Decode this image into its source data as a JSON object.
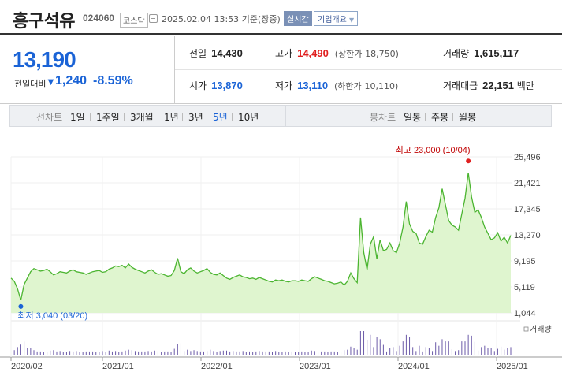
{
  "header": {
    "stock_name": "흥구석유",
    "stock_code": "024060",
    "market": "코스닥",
    "datetime": "2025.02.04 13:53",
    "basis": "기준(장중)",
    "realtime_label": "실시간",
    "company_button": "기업개요"
  },
  "quote": {
    "price": "13,190",
    "compare_label": "전일대비",
    "change": "1,240",
    "change_pct": "-8.59%",
    "prev_close_label": "전일",
    "prev_close": "14,430",
    "high_label": "고가",
    "high": "14,490",
    "upper_limit_label": "(상한가",
    "upper_limit": "18,750)",
    "volume_label": "거래량",
    "volume": "1,615,117",
    "open_label": "시가",
    "open": "13,870",
    "low_label": "저가",
    "low": "13,110",
    "lower_limit_label": "(하한가",
    "lower_limit": "10,110)",
    "amount_label": "거래대금",
    "amount": "22,151",
    "amount_unit": "백만"
  },
  "period_tabs": {
    "line_chart_label": "선차트",
    "items": [
      "1일",
      "1주일",
      "3개월",
      "1년",
      "3년",
      "5년",
      "10년"
    ],
    "selected": "5년",
    "candle_chart_label": "봉차트",
    "candle_items": [
      "일봉",
      "주봉",
      "월봉"
    ]
  },
  "colors": {
    "up": "#e02020",
    "down": "#1a63d6",
    "line": "#4cb531",
    "fill": "#dff5cf"
  },
  "chart_data": {
    "type": "area",
    "y_ticks": [
      "25,496",
      "21,421",
      "17,345",
      "13,270",
      "9,195",
      "5,119",
      "1,044"
    ],
    "ylim": [
      1044,
      25496
    ],
    "x_ticks": [
      "2020/02",
      "2021/01",
      "2022/01",
      "2023/01",
      "2024/01",
      "2025/01"
    ],
    "high_annotation": "최고 23,000 (10/04)",
    "low_annotation": "최저 3,040 (03/20)",
    "volume_label": "거래량",
    "series": [
      {
        "values": [
          6500,
          6000,
          4800,
          3040,
          5500,
          6500,
          7500,
          8000,
          7800,
          7600,
          7700,
          7900,
          7500,
          7000,
          7200,
          7500,
          7400,
          7300,
          7600,
          7800,
          7500,
          7400,
          7300,
          7100,
          7300,
          7500,
          7600,
          7700,
          7400,
          7500,
          7900,
          8100,
          8400,
          8300,
          8500,
          8100,
          8700,
          8200,
          7900,
          7700,
          7500,
          7300,
          7600,
          7800,
          7400,
          7100,
          7200,
          7000,
          6800,
          6900,
          7700,
          9600,
          7500,
          7200,
          7800,
          8100,
          7600,
          7300,
          7500,
          7700,
          8000,
          7400,
          7100,
          7000,
          7300,
          6900,
          6500,
          6300,
          6600,
          6800,
          7000,
          6700,
          6600,
          6400,
          6500,
          6300,
          6600,
          6400,
          6200,
          6000,
          5900,
          6200,
          6100,
          6200,
          6000,
          5900,
          6100,
          6100,
          6000,
          6200,
          6100,
          6000,
          6400,
          6700,
          6500,
          6300,
          6100,
          6000,
          5800,
          5600,
          5700,
          5900,
          5400,
          6000,
          7300,
          6400,
          5800,
          16000,
          10500,
          7800,
          11800,
          13000,
          9500,
          12500,
          10800,
          11000,
          12000,
          10800,
          10500,
          12000,
          14500,
          18500,
          15000,
          13800,
          13500,
          12000,
          11800,
          13000,
          14000,
          13700,
          16000,
          17500,
          20500,
          18000,
          15500,
          14800,
          14500,
          14000,
          16500,
          19000,
          23000,
          19200,
          16800,
          17200,
          16000,
          14500,
          13500,
          12500,
          12800,
          13600,
          12300,
          12900,
          12000,
          13190
        ]
      }
    ]
  }
}
